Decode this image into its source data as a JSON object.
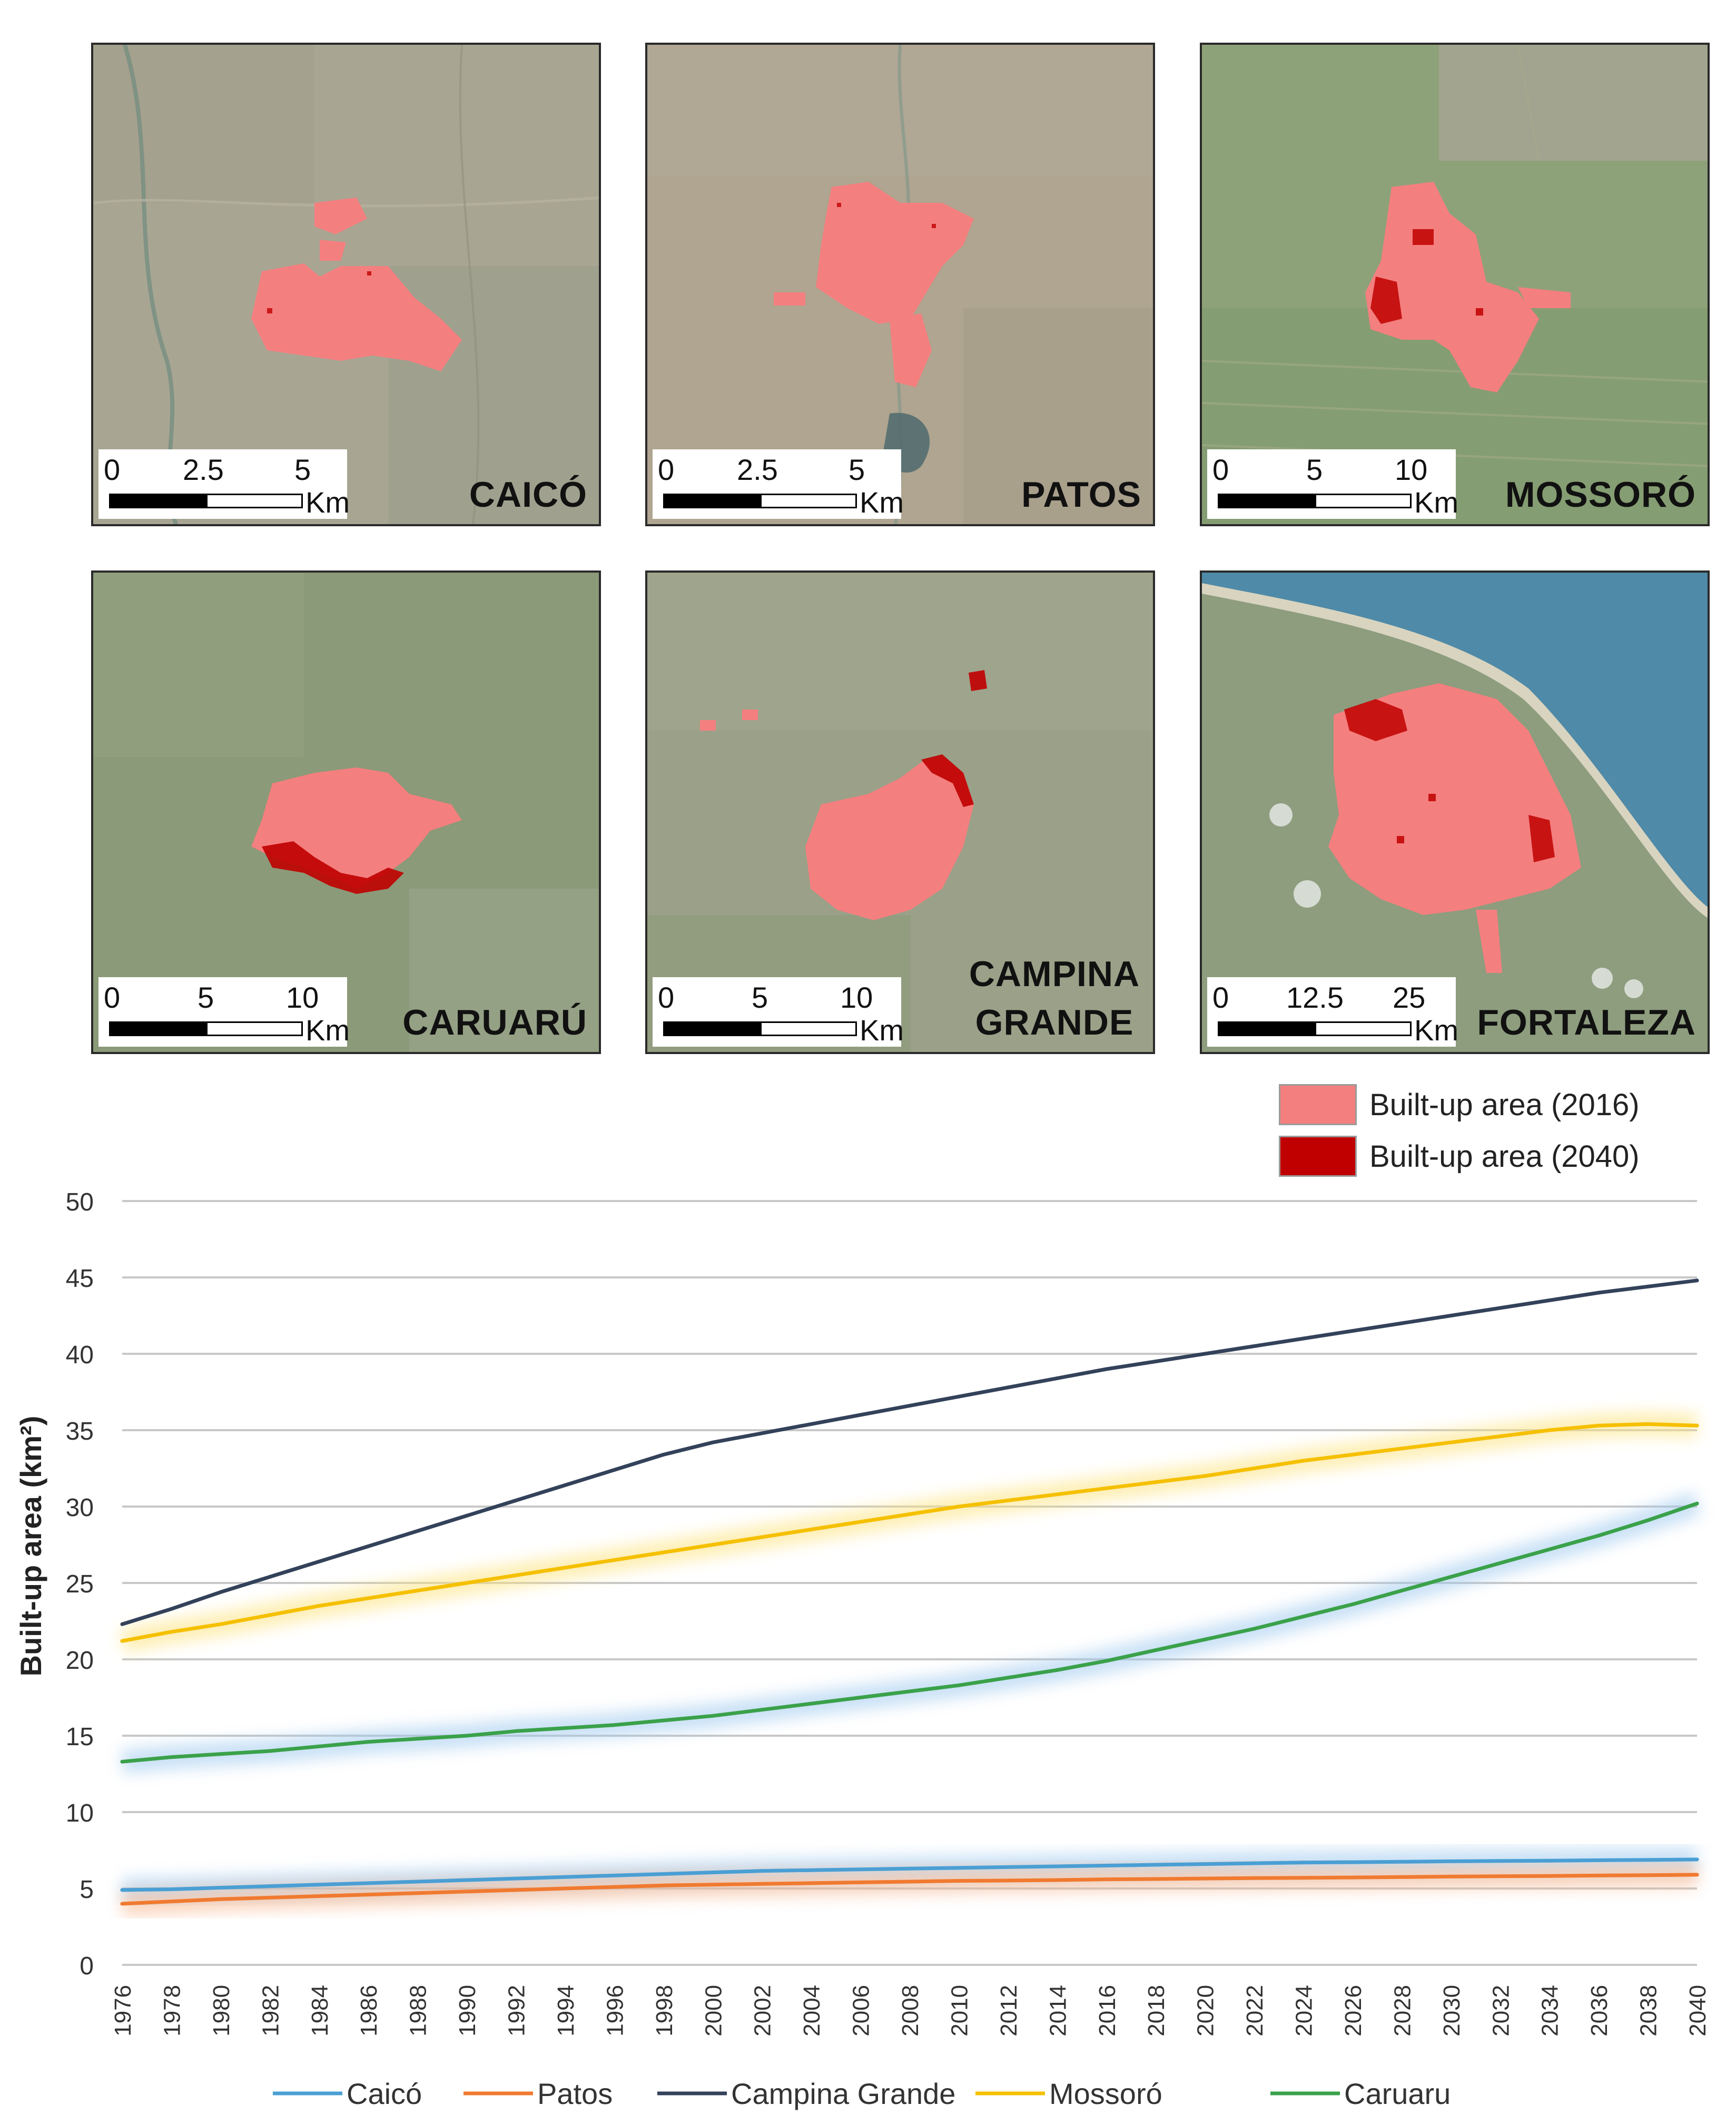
{
  "maps": [
    {
      "city": "CAICÓ",
      "scale_ticks": [
        "0",
        "2.5",
        "5"
      ],
      "scale_unit": "Km"
    },
    {
      "city": "PATOS",
      "scale_ticks": [
        "0",
        "2.5",
        "5"
      ],
      "scale_unit": "Km"
    },
    {
      "city": "MOSSORÓ",
      "scale_ticks": [
        "0",
        "5",
        "10"
      ],
      "scale_unit": "Km"
    },
    {
      "city": "CARUARÚ",
      "scale_ticks": [
        "0",
        "5",
        "10"
      ],
      "scale_unit": "Km"
    },
    {
      "city": "CAMPINA GRANDE",
      "scale_ticks": [
        "0",
        "5",
        "10"
      ],
      "scale_unit": "Km"
    },
    {
      "city": "FORTALEZA",
      "scale_ticks": [
        "0",
        "12.5",
        "25"
      ],
      "scale_unit": "Km"
    }
  ],
  "map_legend": [
    {
      "label": "Built-up area (2016)",
      "color": "#f47f7f"
    },
    {
      "label": "Built-up area (2040)",
      "color": "#c00000"
    }
  ],
  "chart_data": {
    "type": "line",
    "title": "",
    "xlabel": "",
    "ylabel": "Built-up area (km²)",
    "ylim": [
      0,
      50
    ],
    "yticks": [
      0,
      5,
      10,
      15,
      20,
      25,
      30,
      35,
      40,
      45,
      50
    ],
    "x": [
      1976,
      1978,
      1980,
      1982,
      1984,
      1986,
      1988,
      1990,
      1992,
      1994,
      1996,
      1998,
      2000,
      2002,
      2004,
      2006,
      2008,
      2010,
      2012,
      2014,
      2016,
      2018,
      2020,
      2022,
      2024,
      2026,
      2028,
      2030,
      2032,
      2034,
      2036,
      2038,
      2040
    ],
    "grid": true,
    "legend_position": "bottom",
    "series": [
      {
        "name": "Caicó",
        "color": "#4a9fd4",
        "values": [
          4.9,
          4.95,
          5.05,
          5.15,
          5.25,
          5.35,
          5.45,
          5.55,
          5.65,
          5.75,
          5.85,
          5.95,
          6.05,
          6.15,
          6.2,
          6.25,
          6.3,
          6.35,
          6.4,
          6.45,
          6.5,
          6.55,
          6.6,
          6.65,
          6.7,
          6.72,
          6.75,
          6.78,
          6.8,
          6.82,
          6.85,
          6.87,
          6.9
        ]
      },
      {
        "name": "Patos",
        "color": "#f07a30",
        "values": [
          4.0,
          4.15,
          4.3,
          4.4,
          4.5,
          4.6,
          4.7,
          4.8,
          4.9,
          5.0,
          5.1,
          5.2,
          5.25,
          5.3,
          5.35,
          5.4,
          5.45,
          5.5,
          5.52,
          5.55,
          5.6,
          5.62,
          5.65,
          5.68,
          5.7,
          5.72,
          5.75,
          5.78,
          5.8,
          5.82,
          5.85,
          5.87,
          5.9
        ]
      },
      {
        "name": "Campina Grande",
        "color": "#33425a",
        "values": [
          22.3,
          23.3,
          24.4,
          25.4,
          26.4,
          27.4,
          28.4,
          29.4,
          30.4,
          31.4,
          32.4,
          33.4,
          34.2,
          34.8,
          35.4,
          36.0,
          36.6,
          37.2,
          37.8,
          38.4,
          39.0,
          39.5,
          40.0,
          40.5,
          41.0,
          41.5,
          42.0,
          42.5,
          43.0,
          43.5,
          44.0,
          44.4,
          44.8
        ]
      },
      {
        "name": "Mossoró",
        "color": "#f5c000",
        "values": [
          21.2,
          21.8,
          22.3,
          22.9,
          23.5,
          24.0,
          24.5,
          25.0,
          25.5,
          26.0,
          26.5,
          27.0,
          27.5,
          28.0,
          28.5,
          29.0,
          29.5,
          30.0,
          30.4,
          30.8,
          31.2,
          31.6,
          32.0,
          32.5,
          33.0,
          33.4,
          33.8,
          34.2,
          34.6,
          35.0,
          35.3,
          35.4,
          35.3
        ]
      },
      {
        "name": "Caruaru",
        "color": "#3aa14a",
        "values": [
          13.3,
          13.6,
          13.8,
          14.0,
          14.3,
          14.6,
          14.8,
          15.0,
          15.3,
          15.5,
          15.7,
          16.0,
          16.3,
          16.7,
          17.1,
          17.5,
          17.9,
          18.3,
          18.8,
          19.3,
          19.9,
          20.6,
          21.3,
          22.0,
          22.8,
          23.6,
          24.5,
          25.4,
          26.3,
          27.2,
          28.1,
          29.1,
          30.2
        ]
      }
    ]
  }
}
